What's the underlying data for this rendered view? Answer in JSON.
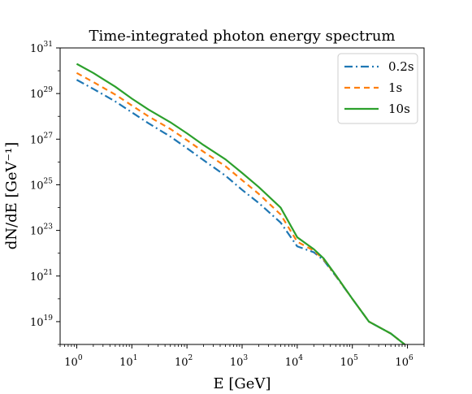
{
  "chart_data": {
    "type": "line",
    "title": "Time-integrated photon energy spectrum",
    "xlabel": "E [GeV]",
    "ylabel": "dN/dE [GeV⁻¹]",
    "xscale": "log",
    "yscale": "log",
    "xlim": [
      0.5,
      2000000
    ],
    "ylim": [
      1e+18,
      1e+31
    ],
    "x_ticks": [
      {
        "value": 1,
        "base": "10",
        "exp": "0"
      },
      {
        "value": 10,
        "base": "10",
        "exp": "1"
      },
      {
        "value": 100,
        "base": "10",
        "exp": "2"
      },
      {
        "value": 1000,
        "base": "10",
        "exp": "3"
      },
      {
        "value": 10000,
        "base": "10",
        "exp": "4"
      },
      {
        "value": 100000,
        "base": "10",
        "exp": "5"
      },
      {
        "value": 1000000,
        "base": "10",
        "exp": "6"
      }
    ],
    "y_ticks": [
      {
        "value": 1e+19,
        "base": "10",
        "exp": "19"
      },
      {
        "value": 1e+21,
        "base": "10",
        "exp": "21"
      },
      {
        "value": 1e+23,
        "base": "10",
        "exp": "23"
      },
      {
        "value": 1e+25,
        "base": "10",
        "exp": "25"
      },
      {
        "value": 1e+27,
        "base": "10",
        "exp": "27"
      },
      {
        "value": 1e+29,
        "base": "10",
        "exp": "29"
      },
      {
        "value": 1e+31,
        "base": "10",
        "exp": "31"
      }
    ],
    "grid": false,
    "legend_position": "top-right",
    "series": [
      {
        "name": "0.2s",
        "color": "#1f77b4",
        "style": "dashdot",
        "x": [
          1,
          2,
          5,
          10,
          20,
          50,
          100,
          200,
          500,
          1000,
          2000,
          5000,
          10000,
          20000,
          30000,
          50000,
          100000,
          200000,
          500000,
          1000000
        ],
        "y": [
          4e+29,
          1.6e+29,
          4.5e+28,
          1.5e+28,
          5e+27,
          1.3e+27,
          4e+26,
          1.2e+26,
          2.5e+25,
          6e+24,
          1.6e+24,
          2.2e+23,
          2e+22,
          1.1e+22,
          5e+21,
          1e+21,
          1e+20,
          1e+19,
          3e+18,
          8e+17
        ]
      },
      {
        "name": "1s",
        "color": "#ff7f0e",
        "style": "dashed",
        "x": [
          1,
          2,
          5,
          10,
          20,
          50,
          100,
          200,
          500,
          1000,
          2000,
          5000,
          10000,
          20000,
          30000,
          50000,
          100000,
          200000,
          500000,
          1000000
        ],
        "y": [
          8e+29,
          3.2e+29,
          9e+28,
          3e+28,
          1e+28,
          2.8e+27,
          9e+26,
          2.8e+26,
          6.5e+25,
          1.6e+25,
          4e+24,
          5e+23,
          3.2e+22,
          1.3e+22,
          5.5e+21,
          1.05e+21,
          1e+20,
          1e+19,
          3e+18,
          8e+17
        ]
      },
      {
        "name": "10s",
        "color": "#2ca02c",
        "style": "solid",
        "x": [
          1,
          2,
          5,
          10,
          20,
          50,
          100,
          200,
          500,
          1000,
          2000,
          5000,
          10000,
          20000,
          30000,
          50000,
          100000,
          200000,
          500000,
          1000000
        ],
        "y": [
          2e+30,
          8e+29,
          2e+29,
          6e+28,
          2e+28,
          5.5e+27,
          1.8e+27,
          5.5e+26,
          1.3e+26,
          3.3e+25,
          8e+24,
          1e+24,
          5e+22,
          1.5e+22,
          6e+21,
          1.1e+21,
          1e+20,
          1e+19,
          3e+18,
          8e+17
        ]
      }
    ]
  }
}
